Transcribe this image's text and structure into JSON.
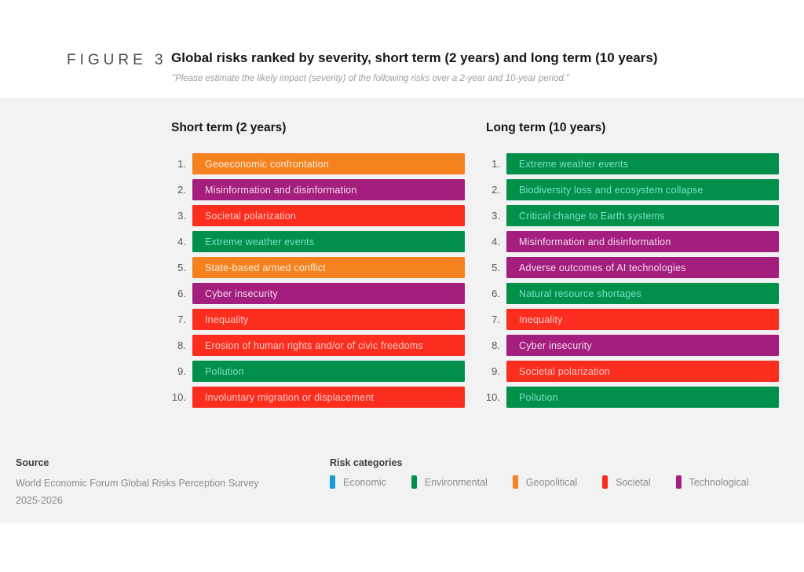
{
  "figure": {
    "label": "FIGURE 3",
    "title": "Global risks ranked by severity, short term (2 years) and long term (10 years)",
    "subtitle": "\"Please estimate the likely impact (severity) of the following risks over a 2-year and 10-year period.\""
  },
  "colors": {
    "band_background": "#f2f2f2",
    "categories": {
      "economic": "#189cd9",
      "environmental": "#00904c",
      "geopolitical": "#f5821f",
      "societal": "#fa2d1f",
      "technological": "#a41e7e"
    },
    "bar_text": {
      "economic": "#d8f0fb",
      "environmental": "#7fe0c2",
      "geopolitical": "#fceedc",
      "societal": "#ffc9c2",
      "technological": "#f3dceb"
    }
  },
  "chart_data": {
    "type": "table",
    "title": "Global risks ranked by severity, short term (2 years) and long term (10 years)",
    "subtitle": "\"Please estimate the likely impact (severity) of the following risks over a 2-year and 10-year period.\"",
    "legend_position": "bottom",
    "columns": [
      {
        "title": "Short term (2 years)",
        "items": [
          {
            "rank": "1.",
            "label": "Geoeconomic confrontation",
            "category": "geopolitical"
          },
          {
            "rank": "2.",
            "label": "Misinformation and disinformation",
            "category": "technological"
          },
          {
            "rank": "3.",
            "label": "Societal polarization",
            "category": "societal"
          },
          {
            "rank": "4.",
            "label": "Extreme weather events",
            "category": "environmental"
          },
          {
            "rank": "5.",
            "label": "State-based armed conflict",
            "category": "geopolitical"
          },
          {
            "rank": "6.",
            "label": "Cyber insecurity",
            "category": "technological"
          },
          {
            "rank": "7.",
            "label": "Inequality",
            "category": "societal"
          },
          {
            "rank": "8.",
            "label": "Erosion of human rights and/or of civic freedoms",
            "category": "societal"
          },
          {
            "rank": "9.",
            "label": "Pollution",
            "category": "environmental"
          },
          {
            "rank": "10.",
            "label": "Involuntary migration or displacement",
            "category": "societal"
          }
        ]
      },
      {
        "title": "Long term (10 years)",
        "items": [
          {
            "rank": "1.",
            "label": "Extreme weather events",
            "category": "environmental"
          },
          {
            "rank": "2.",
            "label": "Biodiversity loss and ecosystem collapse",
            "category": "environmental"
          },
          {
            "rank": "3.",
            "label": "Critical change to Earth systems",
            "category": "environmental"
          },
          {
            "rank": "4.",
            "label": "Misinformation and disinformation",
            "category": "technological"
          },
          {
            "rank": "5.",
            "label": "Adverse outcomes of AI technologies",
            "category": "technological"
          },
          {
            "rank": "6.",
            "label": "Natural resource shortages",
            "category": "environmental"
          },
          {
            "rank": "7.",
            "label": "Inequality",
            "category": "societal"
          },
          {
            "rank": "8.",
            "label": "Cyber insecurity",
            "category": "technological"
          },
          {
            "rank": "9.",
            "label": "Societal polarization",
            "category": "societal"
          },
          {
            "rank": "10.",
            "label": "Pollution",
            "category": "environmental"
          }
        ]
      }
    ]
  },
  "footer": {
    "source_label": "Source",
    "source_line1": "World Economic Forum Global Risks Perception Survey",
    "source_line2": "2025-2026",
    "legend_title": "Risk categories",
    "legend": [
      {
        "label": "Economic",
        "category": "economic"
      },
      {
        "label": "Environmental",
        "category": "environmental"
      },
      {
        "label": "Geopolitical",
        "category": "geopolitical"
      },
      {
        "label": "Societal",
        "category": "societal"
      },
      {
        "label": "Technological",
        "category": "technological"
      }
    ]
  }
}
